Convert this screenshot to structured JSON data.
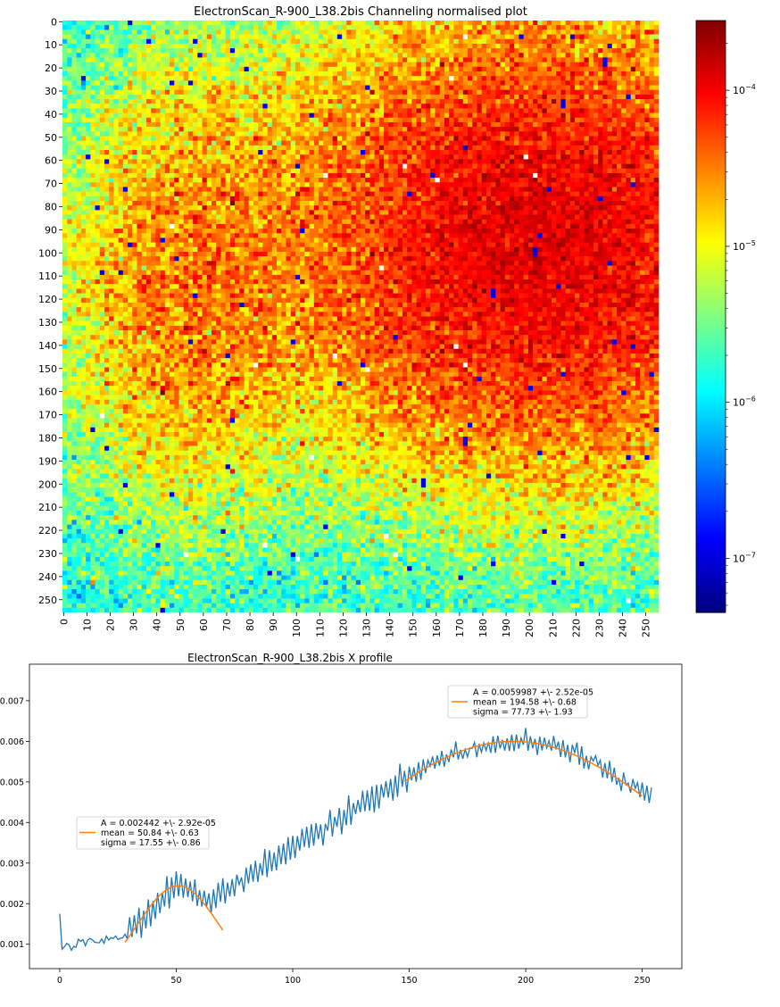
{
  "heatmap": {
    "title": "ElectronScan_R-900_L38.2bis Channeling normalised plot",
    "x_ticks": [
      0,
      10,
      20,
      30,
      40,
      50,
      60,
      70,
      80,
      90,
      100,
      110,
      120,
      130,
      140,
      150,
      160,
      170,
      180,
      190,
      200,
      210,
      220,
      230,
      240,
      250
    ],
    "y_ticks": [
      0,
      10,
      20,
      30,
      40,
      50,
      60,
      70,
      80,
      90,
      100,
      110,
      120,
      130,
      140,
      150,
      160,
      170,
      180,
      190,
      200,
      210,
      220,
      230,
      240,
      250
    ],
    "colorbar": {
      "scale": "log",
      "colormap": "jet",
      "range": [
        4.5e-08,
        0.00028
      ],
      "tick_values": [
        1e-07,
        1e-06,
        1e-05,
        0.0001
      ],
      "tick_labels": [
        [
          "10",
          "−7"
        ],
        [
          "10",
          "−6"
        ],
        [
          "10",
          "−5"
        ],
        [
          "10",
          "−4"
        ]
      ]
    }
  },
  "profile": {
    "title": "ElectronScan_R-900_L38.2bis X profile",
    "x_ticks": [
      "0",
      "50",
      "100",
      "150",
      "200",
      "250"
    ],
    "y_ticks": [
      "0.001",
      "0.002",
      "0.003",
      "0.004",
      "0.005",
      "0.006",
      "0.007"
    ],
    "fit1_legend": [
      "A = 0.002442 +\\- 2.92e-05",
      "mean = 50.84 +\\- 0.63",
      "sigma = 17.55 +\\- 0.86"
    ],
    "fit2_legend": [
      "A = 0.0059987 +\\- 2.52e-05",
      "mean = 194.58 +\\- 0.68",
      "sigma = 77.73 +\\- 1.93"
    ],
    "colors": {
      "data": "#1f77b4",
      "fit": "#ff7f0e"
    }
  },
  "chart_data": [
    {
      "type": "heatmap",
      "title": "ElectronScan_R-900_L38.2bis Channeling normalised plot",
      "x_range": [
        0,
        255
      ],
      "y_range": [
        0,
        255
      ],
      "value_scale": "log",
      "value_range": [
        4.5e-08,
        0.00028
      ],
      "model": "approximate: broad maximum ~1.2e-04 around x=205, y=95; secondary plateau ~3e-05 around x=55, y=115; background ~1.5e-06 at left and bottom edges",
      "blobs": [
        {
          "value": 0.00012,
          "center": [
            205,
            95
          ],
          "sigma": [
            58,
            50
          ]
        },
        {
          "value": 3e-05,
          "center": [
            55,
            115
          ],
          "sigma": [
            28,
            50
          ]
        },
        {
          "value": 1.5e-06,
          "role": "background"
        }
      ]
    },
    {
      "type": "line",
      "title": "ElectronScan_R-900_L38.2bis X profile",
      "xlim": [
        -13,
        267
      ],
      "ylim": [
        0.0004,
        0.0079
      ],
      "series": [
        {
          "role": "data",
          "description": "noisy profile with period-2 oscillation",
          "key_points": [
            [
              0,
              0.00175
            ],
            [
              1,
              0.00088
            ],
            [
              10,
              0.00098
            ],
            [
              20,
              0.00113
            ],
            [
              28,
              0.0012
            ],
            [
              40,
              0.00195
            ],
            [
              50,
              0.00245
            ],
            [
              60,
              0.00215
            ],
            [
              65,
              0.00205
            ],
            [
              80,
              0.00265
            ],
            [
              100,
              0.0034
            ],
            [
              120,
              0.0041
            ],
            [
              140,
              0.0048
            ],
            [
              160,
              0.00545
            ],
            [
              175,
              0.0058
            ],
            [
              190,
              0.00592
            ],
            [
              200,
              0.006
            ],
            [
              210,
              0.0059
            ],
            [
              220,
              0.00575
            ],
            [
              230,
              0.00545
            ],
            [
              240,
              0.00505
            ],
            [
              250,
              0.00478
            ],
            [
              254,
              0.00468
            ]
          ]
        },
        {
          "role": "fit",
          "x_range": [
            28,
            70
          ],
          "model": "A*exp(-(x-mean)^2/(2*sigma^2))",
          "A": 0.002442,
          "mean": 50.84,
          "sigma": 17.55
        },
        {
          "role": "fit",
          "x_range": [
            148,
            250
          ],
          "model": "A*exp(-(x-mean)^2/(2*sigma^2))",
          "A": 0.0059987,
          "mean": 194.58,
          "sigma": 77.73
        }
      ]
    }
  ]
}
